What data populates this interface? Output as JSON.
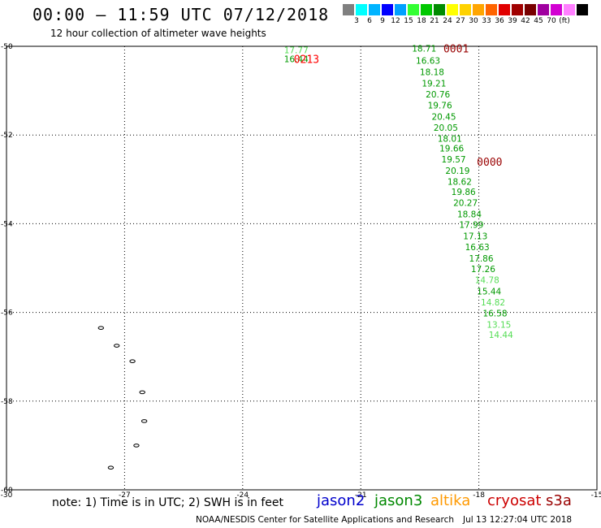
{
  "header": {
    "title": "00:00 – 11:59 UTC 07/12/2018",
    "subtitle": "12 hour collection of altimeter wave heights"
  },
  "legend": {
    "colors": [
      "#808080",
      "#00ffff",
      "#00b4ff",
      "#0000ff",
      "#00a0ff",
      "#33ff33",
      "#00c800",
      "#008c00",
      "#ffff00",
      "#ffd200",
      "#ffa500",
      "#ff6400",
      "#e10000",
      "#a00000",
      "#780000",
      "#a000a0",
      "#d200d2",
      "#ff80ff",
      "#000000"
    ],
    "labels": [
      "3",
      "6",
      "9",
      "12",
      "15",
      "18",
      "21",
      "24",
      "27",
      "30",
      "33",
      "36",
      "39",
      "42",
      "45",
      "70",
      "(ft)"
    ]
  },
  "footer": {
    "notes": "note: 1) Time is in UTC; 2) SWH is in feet",
    "satellites": [
      {
        "name": "jason2",
        "color": "#0000cc"
      },
      {
        "name": "jason3",
        "color": "#008800"
      },
      {
        "name": "altika",
        "color": "#ff9900"
      },
      {
        "name": "cryosat",
        "color": "#cc0000"
      },
      {
        "name": "s3a",
        "color": "#990000"
      }
    ],
    "credit": "NOAA/NESDIS Center for Satellite Applications and Research",
    "timestamp": "Jul 13 12:27:04 UTC 2018"
  },
  "chart_data": {
    "type": "scatter",
    "x_range": [
      -30,
      -15
    ],
    "y_range": [
      -60,
      -50
    ],
    "x_ticks": [
      "-30",
      "-27",
      "-24",
      "-21",
      "-18",
      "-15"
    ],
    "y_ticks": [
      "-50",
      "-52",
      "-54",
      "-56",
      "-58",
      "-60"
    ],
    "grid": true,
    "tracks": [
      {
        "label": "0001",
        "label_color": "#990000",
        "label_pos": [
          -18.9,
          -50.05
        ]
      },
      {
        "label": "0213",
        "label_color": "#ff0000",
        "label_pos": [
          -22.7,
          -50.28
        ]
      },
      {
        "label": "0000",
        "label_color": "#990000",
        "label_pos": [
          -18.05,
          -52.6
        ]
      }
    ],
    "points": [
      {
        "lon": -22.95,
        "lat": -50.08,
        "value": "17.77",
        "color": "#55dd55"
      },
      {
        "lon": -22.95,
        "lat": -50.28,
        "value": "16.44",
        "color": "#009900"
      },
      {
        "lon": -19.7,
        "lat": -50.05,
        "value": "18.71",
        "color": "#009900"
      },
      {
        "lon": -19.6,
        "lat": -50.32,
        "value": "16.63",
        "color": "#009900"
      },
      {
        "lon": -19.5,
        "lat": -50.58,
        "value": "18.18",
        "color": "#009900"
      },
      {
        "lon": -19.45,
        "lat": -50.83,
        "value": "19.21",
        "color": "#009900"
      },
      {
        "lon": -19.35,
        "lat": -51.08,
        "value": "20.76",
        "color": "#009900"
      },
      {
        "lon": -19.3,
        "lat": -51.33,
        "value": "19.76",
        "color": "#009900"
      },
      {
        "lon": -19.2,
        "lat": -51.58,
        "value": "20.45",
        "color": "#009900"
      },
      {
        "lon": -19.15,
        "lat": -51.83,
        "value": "20.05",
        "color": "#009900"
      },
      {
        "lon": -19.05,
        "lat": -52.08,
        "value": "18.01",
        "color": "#009900"
      },
      {
        "lon": -19.0,
        "lat": -52.3,
        "value": "19.66",
        "color": "#009900"
      },
      {
        "lon": -18.95,
        "lat": -52.55,
        "value": "19.57",
        "color": "#009900"
      },
      {
        "lon": -18.85,
        "lat": -52.8,
        "value": "20.19",
        "color": "#009900"
      },
      {
        "lon": -18.8,
        "lat": -53.05,
        "value": "18.62",
        "color": "#009900"
      },
      {
        "lon": -18.7,
        "lat": -53.28,
        "value": "19.86",
        "color": "#009900"
      },
      {
        "lon": -18.65,
        "lat": -53.53,
        "value": "20.27",
        "color": "#009900"
      },
      {
        "lon": -18.55,
        "lat": -53.78,
        "value": "18.84",
        "color": "#009900"
      },
      {
        "lon": -18.5,
        "lat": -54.02,
        "value": "17.99",
        "color": "#009900"
      },
      {
        "lon": -18.4,
        "lat": -54.28,
        "value": "17.13",
        "color": "#009900"
      },
      {
        "lon": -18.35,
        "lat": -54.52,
        "value": "16.63",
        "color": "#009900"
      },
      {
        "lon": -18.25,
        "lat": -54.78,
        "value": "17.86",
        "color": "#009900"
      },
      {
        "lon": -18.2,
        "lat": -55.02,
        "value": "17.26",
        "color": "#009900"
      },
      {
        "lon": -18.1,
        "lat": -55.27,
        "value": "14.78",
        "color": "#55dd55"
      },
      {
        "lon": -18.05,
        "lat": -55.52,
        "value": "15.44",
        "color": "#009900"
      },
      {
        "lon": -17.95,
        "lat": -55.77,
        "value": "14.82",
        "color": "#55dd55"
      },
      {
        "lon": -17.9,
        "lat": -56.02,
        "value": "16.58",
        "color": "#009900"
      },
      {
        "lon": -17.8,
        "lat": -56.27,
        "value": "13.15",
        "color": "#55dd55"
      },
      {
        "lon": -17.75,
        "lat": -56.5,
        "value": "14.44",
        "color": "#55dd55"
      }
    ],
    "islands": [
      {
        "lon": -27.6,
        "lat": -56.35
      },
      {
        "lon": -27.2,
        "lat": -56.75
      },
      {
        "lon": -26.8,
        "lat": -57.1
      },
      {
        "lon": -26.55,
        "lat": -57.8
      },
      {
        "lon": -26.5,
        "lat": -58.45
      },
      {
        "lon": -26.7,
        "lat": -59.0
      },
      {
        "lon": -27.35,
        "lat": -59.5
      }
    ]
  }
}
